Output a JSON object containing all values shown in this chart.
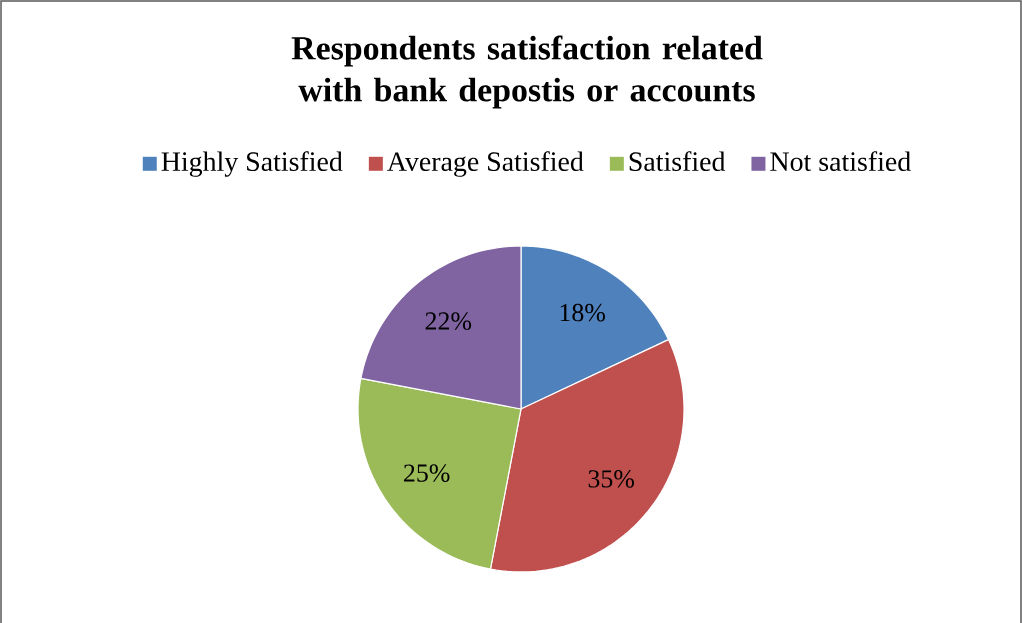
{
  "chart_data": {
    "type": "pie",
    "title": "Respondents satisfaction related with bank depostis or accounts",
    "categories": [
      "Highly Satisfied",
      "Average Satisfied",
      "Satisfied",
      "Not satisfied"
    ],
    "values": [
      18,
      35,
      25,
      22
    ],
    "colors": [
      "#4f81bd",
      "#c0504d",
      "#9bbb59",
      "#8064a2"
    ],
    "value_labels": [
      "18%",
      "35%",
      "25%",
      "22%"
    ],
    "legend": "top"
  }
}
